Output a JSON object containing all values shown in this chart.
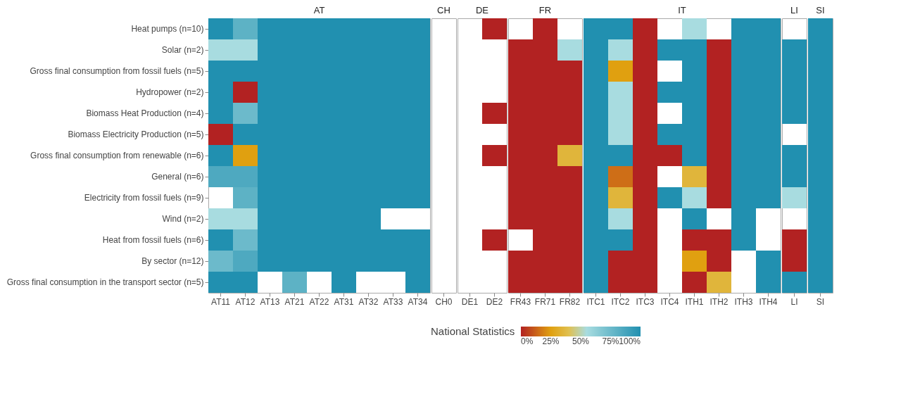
{
  "chart_data": {
    "type": "heatmap",
    "categories": [
      "AT11",
      "AT12",
      "AT13",
      "AT21",
      "AT22",
      "AT31",
      "AT32",
      "AT33",
      "AT34",
      "CH0",
      "DE1",
      "DE2",
      "FR43",
      "FR71",
      "FR82",
      "ITC1",
      "ITC2",
      "ITC3",
      "ITC4",
      "ITH1",
      "ITH2",
      "ITH3",
      "ITH4",
      "LI",
      "SI"
    ],
    "annotations": [
      "AT",
      "CH",
      "DE",
      "FR",
      "IT",
      "LI",
      "SI"
    ],
    "y_categories": [
      "Heat pumps (n=10)",
      "Solar (n=2)",
      "Gross final consumption from fossil fuels (n=5)",
      "Hydropower (n=2)",
      "Biomass Heat Production (n=4)",
      "Biomass Electricity Production (n=5)",
      "Gross final consumption from renewable (n=6)",
      "General (n=6)",
      "Electricity from fossil fuels (n=9)",
      "Wind (n=2)",
      "Heat from fossil fuels (n=6)",
      "By sector (n=12)",
      "Gross final consumption in the transport sector (n=5)"
    ],
    "cells": [
      [
        100,
        80,
        100,
        100,
        100,
        100,
        100,
        100,
        100,
        null,
        null,
        0,
        null,
        0,
        null,
        100,
        100,
        0,
        null,
        55,
        null,
        100,
        100,
        null,
        100
      ],
      [
        55,
        55,
        100,
        100,
        100,
        100,
        100,
        100,
        100,
        null,
        null,
        null,
        0,
        0,
        55,
        100,
        55,
        0,
        100,
        100,
        0,
        100,
        100,
        100,
        100
      ],
      [
        100,
        100,
        100,
        100,
        100,
        100,
        100,
        100,
        100,
        null,
        null,
        null,
        0,
        0,
        0,
        100,
        25,
        0,
        null,
        100,
        0,
        100,
        100,
        100,
        100
      ],
      [
        100,
        0,
        100,
        100,
        100,
        100,
        100,
        100,
        100,
        null,
        null,
        null,
        0,
        0,
        0,
        100,
        55,
        0,
        100,
        100,
        0,
        100,
        100,
        100,
        100
      ],
      [
        100,
        75,
        100,
        100,
        100,
        100,
        100,
        100,
        100,
        null,
        null,
        0,
        0,
        0,
        0,
        100,
        55,
        0,
        null,
        100,
        0,
        100,
        100,
        100,
        100
      ],
      [
        0,
        100,
        100,
        100,
        100,
        100,
        100,
        100,
        100,
        null,
        null,
        null,
        0,
        0,
        0,
        100,
        55,
        0,
        100,
        100,
        0,
        100,
        100,
        null,
        100
      ],
      [
        100,
        25,
        100,
        100,
        100,
        100,
        100,
        100,
        100,
        null,
        null,
        0,
        0,
        0,
        35,
        100,
        100,
        0,
        0,
        100,
        0,
        100,
        100,
        100,
        100
      ],
      [
        85,
        85,
        100,
        100,
        100,
        100,
        100,
        100,
        100,
        null,
        null,
        null,
        0,
        0,
        0,
        100,
        15,
        0,
        null,
        35,
        0,
        100,
        100,
        100,
        100
      ],
      [
        null,
        80,
        100,
        100,
        100,
        100,
        100,
        100,
        100,
        null,
        null,
        null,
        0,
        0,
        0,
        100,
        35,
        0,
        100,
        55,
        0,
        100,
        100,
        55,
        100
      ],
      [
        55,
        55,
        100,
        100,
        100,
        100,
        100,
        null,
        null,
        null,
        null,
        null,
        0,
        0,
        0,
        100,
        55,
        0,
        null,
        100,
        null,
        100,
        null,
        null,
        100
      ],
      [
        100,
        75,
        100,
        100,
        100,
        100,
        100,
        100,
        100,
        null,
        null,
        0,
        null,
        0,
        0,
        100,
        100,
        0,
        null,
        0,
        0,
        100,
        null,
        0,
        100
      ],
      [
        75,
        85,
        100,
        100,
        100,
        100,
        100,
        100,
        100,
        null,
        null,
        null,
        0,
        0,
        0,
        100,
        0,
        0,
        null,
        25,
        0,
        null,
        100,
        0,
        100
      ],
      [
        100,
        100,
        null,
        80,
        null,
        100,
        null,
        null,
        100,
        null,
        null,
        null,
        0,
        0,
        0,
        100,
        0,
        0,
        null,
        0,
        35,
        null,
        100,
        100,
        100
      ]
    ],
    "clim": [
      0,
      100
    ],
    "clabel": "National Statistics",
    "cticks": [
      {
        "value": 0,
        "label": "0%"
      },
      {
        "value": 25,
        "label": "25%"
      },
      {
        "value": 50,
        "label": "50%"
      },
      {
        "value": 75,
        "label": "75%"
      },
      {
        "value": 100,
        "label": "100%"
      }
    ]
  }
}
